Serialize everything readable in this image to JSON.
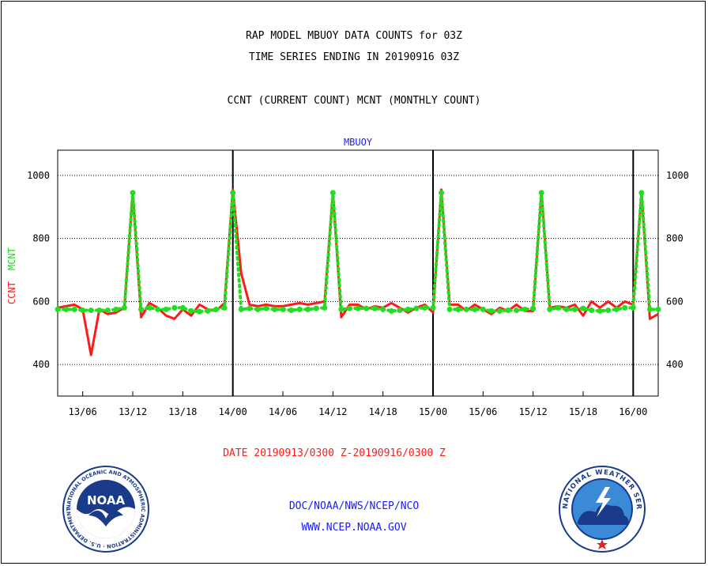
{
  "header": {
    "title_line1": "RAP MODEL MBUOY DATA COUNTS for 03Z",
    "title_line2": "TIME SERIES ENDING IN 20190916 03Z",
    "subtitle": "CCNT (CURRENT COUNT) MCNT (MONTHLY COUNT)"
  },
  "footer": {
    "date_range": "DATE 20190913/0300 Z-20190916/0300 Z",
    "org_path": "DOC/NOAA/NWS/NCEP/NCO",
    "website": "WWW.NCEP.NOAA.GOV",
    "noaa_logo_text": "NOAA",
    "noaa_ring_text": "NATIONAL OCEANIC AND ATMOSPHERIC ADMINISTRATION · U.S. DEPARTMENT OF COMMERCE",
    "nws_ring_text": "NATIONAL WEATHER SERVICE"
  },
  "colors": {
    "ccnt": "#ff1a1a",
    "mcnt": "#22dd22",
    "links": "#1a1aff"
  },
  "chart_data": {
    "type": "line",
    "title": "MBUOY",
    "ylabel_left_red": "CCNT",
    "ylabel_left_green": "MCNT",
    "ylim": [
      300,
      1080
    ],
    "yticks": [
      400,
      600,
      800,
      1000
    ],
    "xlim": [
      0,
      72
    ],
    "xticks": [
      "13/06",
      "13/12",
      "13/18",
      "14/00",
      "14/06",
      "14/12",
      "14/18",
      "15/00",
      "15/06",
      "15/12",
      "15/18",
      "16/00"
    ],
    "day_boundaries": [
      "14/00",
      "15/00",
      "16/00"
    ],
    "grid": "horizontal dotted",
    "x_hours_from_start": [
      0,
      1,
      2,
      3,
      4,
      5,
      6,
      7,
      8,
      9,
      10,
      11,
      12,
      13,
      14,
      15,
      16,
      17,
      18,
      19,
      20,
      21,
      22,
      23,
      24,
      25,
      26,
      27,
      28,
      29,
      30,
      31,
      32,
      33,
      34,
      35,
      36,
      37,
      38,
      39,
      40,
      41,
      42,
      43,
      44,
      45,
      46,
      47,
      48,
      49,
      50,
      51,
      52,
      53,
      54,
      55,
      56,
      57,
      58,
      59,
      60,
      61,
      62,
      63,
      64,
      65,
      66,
      67,
      68,
      69,
      70,
      71,
      72
    ],
    "series": [
      {
        "name": "CCNT",
        "values": [
          580,
          585,
          590,
          575,
          430,
          575,
          560,
          565,
          580,
          945,
          550,
          595,
          580,
          555,
          545,
          575,
          555,
          590,
          575,
          570,
          595,
          955,
          690,
          590,
          585,
          590,
          585,
          585,
          590,
          595,
          590,
          595,
          600,
          945,
          550,
          590,
          590,
          575,
          585,
          580,
          595,
          580,
          565,
          580,
          590,
          565,
          955,
          590,
          590,
          570,
          590,
          575,
          560,
          580,
          570,
          590,
          570,
          570,
          950,
          580,
          585,
          580,
          590,
          555,
          600,
          580,
          600,
          580,
          600,
          590,
          945,
          545,
          560
        ]
      },
      {
        "name": "MCNT",
        "values": [
          575,
          575,
          575,
          572,
          572,
          572,
          572,
          575,
          580,
          945,
          575,
          580,
          575,
          575,
          580,
          580,
          570,
          568,
          570,
          575,
          580,
          945,
          575,
          578,
          575,
          578,
          575,
          575,
          572,
          575,
          575,
          578,
          580,
          945,
          575,
          578,
          578,
          578,
          578,
          575,
          570,
          572,
          575,
          578,
          580,
          580,
          945,
          575,
          575,
          575,
          575,
          575,
          570,
          570,
          572,
          572,
          575,
          578,
          945,
          575,
          580,
          575,
          575,
          578,
          572,
          570,
          572,
          575,
          580,
          580,
          945,
          575,
          575
        ]
      }
    ]
  }
}
